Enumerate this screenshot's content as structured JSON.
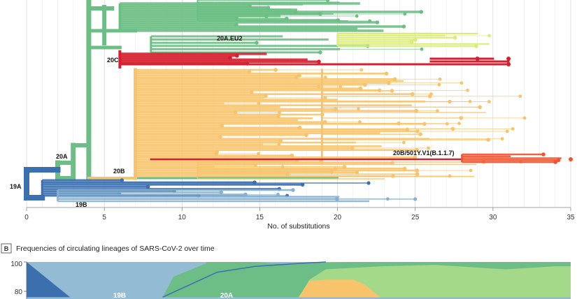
{
  "colors": {
    "c19A": "#3a6fb0",
    "c19B": "#87b1cf",
    "c20A": "#6cbf84",
    "c20B": "#f7c46c",
    "c20C": "#d62030",
    "cEU2": "#dcec7a",
    "cB117": "#f4512c",
    "c20A_area": "#6cbe86",
    "c20Aother_area": "#a4d98a",
    "c20B_area": "#f7c46c",
    "c19B_area": "#93bcd4",
    "c19A_area": "#3c6fae",
    "grid": "#dddddd"
  },
  "chart_data": [
    {
      "type": "tree",
      "title": "",
      "xlabel": "No. of substitutions",
      "ylabel": "",
      "xlim": [
        0,
        35
      ],
      "xticks": [
        "0",
        "5",
        "10",
        "15",
        "20",
        "25",
        "30",
        "35"
      ],
      "clades": [
        {
          "name": "19A",
          "label": "19A",
          "color_key": "c19A",
          "max_substitutions": 22
        },
        {
          "name": "19B",
          "label": "19B",
          "color_key": "c19B",
          "max_substitutions": 25
        },
        {
          "name": "20A",
          "label": "20A",
          "color_key": "c20A",
          "max_substitutions": 26
        },
        {
          "name": "20A.EU2",
          "label": "20A.EU2",
          "color_key": "cEU2",
          "max_substitutions": 30
        },
        {
          "name": "20B",
          "label": "20B",
          "color_key": "c20B",
          "max_substitutions": 32
        },
        {
          "name": "20C",
          "label": "20C",
          "color_key": "c20C",
          "max_substitutions": 31
        },
        {
          "name": "20B/501Y.V1(B.1.1.7)",
          "label": "20B/501Y.V1(B.1.1.7)",
          "color_key": "cB117",
          "max_substitutions": 35
        }
      ]
    },
    {
      "type": "area",
      "panel_letter": "B",
      "title": "Frequencies of circulating lineages of SARS-CoV-2 over time",
      "ylabel": "",
      "ylim": [
        0,
        100
      ],
      "visible_yticks": [
        "100",
        "80"
      ],
      "series_labels": [
        "19B",
        "20A"
      ],
      "series": [
        {
          "name": "19A",
          "color_key": "c19A_area"
        },
        {
          "name": "19B",
          "color_key": "c19B_area"
        },
        {
          "name": "20A",
          "color_key": "c20A_area"
        },
        {
          "name": "20B",
          "color_key": "c20B_area"
        },
        {
          "name": "20A other",
          "color_key": "c20Aother_area"
        }
      ]
    }
  ]
}
